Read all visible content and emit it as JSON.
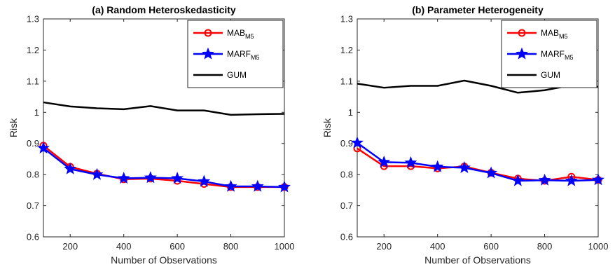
{
  "chart_data": [
    {
      "type": "line",
      "title": "(a) Random Heteroskedasticity",
      "xlabel": "Number of Observations",
      "ylabel": "Risk",
      "xlim": [
        100,
        1000
      ],
      "ylim": [
        0.6,
        1.3
      ],
      "xticks": [
        200,
        400,
        600,
        800,
        1000
      ],
      "yticks": [
        0.6,
        0.7,
        0.8,
        0.9,
        1,
        1.1,
        1.2,
        1.3
      ],
      "grid": false,
      "legend_position": "top-right",
      "x": [
        100,
        200,
        300,
        400,
        500,
        600,
        700,
        800,
        900,
        1000
      ],
      "series": [
        {
          "name": "MAB",
          "name_sub": "M5",
          "color": "#ff0000",
          "marker": "circle",
          "values": [
            0.893,
            0.825,
            0.803,
            0.785,
            0.787,
            0.78,
            0.77,
            0.76,
            0.76,
            0.76
          ]
        },
        {
          "name": "MARF",
          "name_sub": "M5",
          "color": "#0000ff",
          "marker": "star",
          "values": [
            0.885,
            0.818,
            0.8,
            0.788,
            0.79,
            0.788,
            0.778,
            0.762,
            0.762,
            0.76
          ]
        },
        {
          "name": "GUM",
          "name_sub": "",
          "color": "#000000",
          "marker": "none",
          "values": [
            1.032,
            1.019,
            1.013,
            1.01,
            1.02,
            1.006,
            1.006,
            0.992,
            0.994,
            0.995
          ]
        }
      ]
    },
    {
      "type": "line",
      "title": "(b) Parameter Heterogeneity",
      "xlabel": "Number of Observations",
      "ylabel": "Risk",
      "xlim": [
        100,
        1000
      ],
      "ylim": [
        0.6,
        1.3
      ],
      "xticks": [
        200,
        400,
        600,
        800,
        1000
      ],
      "yticks": [
        0.6,
        0.7,
        0.8,
        0.9,
        1,
        1.1,
        1.2,
        1.3
      ],
      "grid": false,
      "legend_position": "top-right",
      "x": [
        100,
        200,
        300,
        400,
        500,
        600,
        700,
        800,
        900,
        1000
      ],
      "series": [
        {
          "name": "MAB",
          "name_sub": "M5",
          "color": "#ff0000",
          "marker": "circle",
          "values": [
            0.884,
            0.827,
            0.827,
            0.82,
            0.826,
            0.806,
            0.787,
            0.78,
            0.793,
            0.783
          ]
        },
        {
          "name": "MARF",
          "name_sub": "M5",
          "color": "#0000ff",
          "marker": "star",
          "values": [
            0.902,
            0.84,
            0.838,
            0.825,
            0.822,
            0.805,
            0.78,
            0.782,
            0.78,
            0.783
          ]
        },
        {
          "name": "GUM",
          "name_sub": "",
          "color": "#000000",
          "marker": "none",
          "values": [
            1.092,
            1.079,
            1.085,
            1.085,
            1.102,
            1.085,
            1.063,
            1.071,
            1.087,
            1.082
          ]
        }
      ]
    }
  ]
}
